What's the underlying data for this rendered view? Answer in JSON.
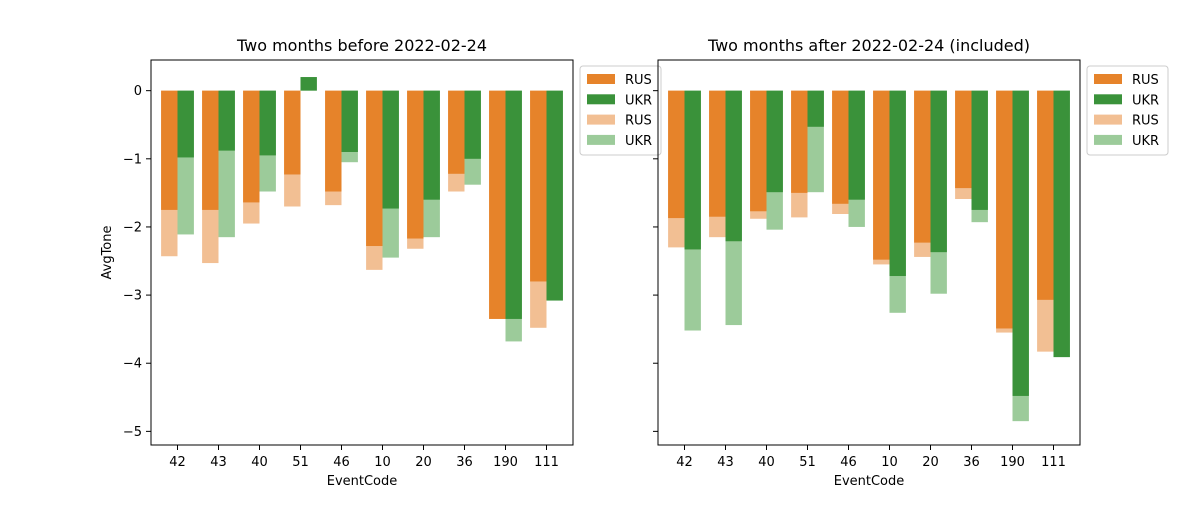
{
  "chart_data": [
    {
      "type": "bar",
      "title": "Two months before 2022-02-24",
      "xlabel": "EventCode",
      "ylabel": "AvgTone",
      "ylim": [
        -5.2,
        0.45
      ],
      "yticks": [
        0,
        -1,
        -2,
        -3,
        -4,
        -5
      ],
      "ytick_labels": [
        "0",
        "−1",
        "−2",
        "−3",
        "−4",
        "−5"
      ],
      "categories": [
        "42",
        "43",
        "40",
        "51",
        "46",
        "10",
        "20",
        "36",
        "190",
        "111"
      ],
      "legend_position": "outside-upper-right",
      "series": [
        {
          "name": "RUS",
          "color": "#e6832a",
          "values": [
            -1.75,
            -1.75,
            -1.64,
            -1.23,
            -1.48,
            -2.28,
            -2.17,
            -1.22,
            -3.35,
            -2.8
          ]
        },
        {
          "name": "UKR",
          "color": "#3a923a",
          "values": [
            -0.98,
            -0.88,
            -0.95,
            0.2,
            -0.9,
            -1.73,
            -1.6,
            -1.0,
            -3.35,
            -3.08
          ]
        },
        {
          "name": "RUS",
          "color": "#f2bf93",
          "values": [
            -2.43,
            -2.53,
            -1.95,
            -1.7,
            -1.68,
            -2.63,
            -2.32,
            -1.48,
            -3.35,
            -3.48
          ]
        },
        {
          "name": "UKR",
          "color": "#9ccb9a",
          "values": [
            -2.11,
            -2.15,
            -1.48,
            0.0,
            -1.05,
            -2.45,
            -2.15,
            -1.38,
            -3.68,
            -3.08
          ]
        }
      ]
    },
    {
      "type": "bar",
      "title": "Two months after 2022-02-24 (included)",
      "xlabel": "EventCode",
      "ylabel": "",
      "ylim": [
        -5.2,
        0.45
      ],
      "yticks": [
        0,
        -1,
        -2,
        -3,
        -4,
        -5
      ],
      "ytick_labels": [
        "",
        "",
        "",
        "",
        "",
        ""
      ],
      "categories": [
        "42",
        "43",
        "40",
        "51",
        "46",
        "10",
        "20",
        "36",
        "190",
        "111"
      ],
      "legend_position": "outside-upper-right",
      "series": [
        {
          "name": "RUS",
          "color": "#e6832a",
          "values": [
            -1.87,
            -1.85,
            -1.77,
            -1.5,
            -1.66,
            -2.48,
            -2.23,
            -1.43,
            -3.49,
            -3.07
          ]
        },
        {
          "name": "UKR",
          "color": "#3a923a",
          "values": [
            -2.33,
            -2.21,
            -1.49,
            -0.53,
            -1.6,
            -2.72,
            -2.37,
            -1.75,
            -4.48,
            -3.91
          ]
        },
        {
          "name": "RUS",
          "color": "#f2bf93",
          "values": [
            -2.3,
            -2.15,
            -1.88,
            -1.86,
            -1.81,
            -2.55,
            -2.44,
            -1.59,
            -3.55,
            -3.83
          ]
        },
        {
          "name": "UKR",
          "color": "#9ccb9a",
          "values": [
            -3.52,
            -3.44,
            -2.04,
            -1.49,
            -2.0,
            -3.26,
            -2.98,
            -1.93,
            -4.85,
            -3.91
          ]
        }
      ]
    }
  ]
}
